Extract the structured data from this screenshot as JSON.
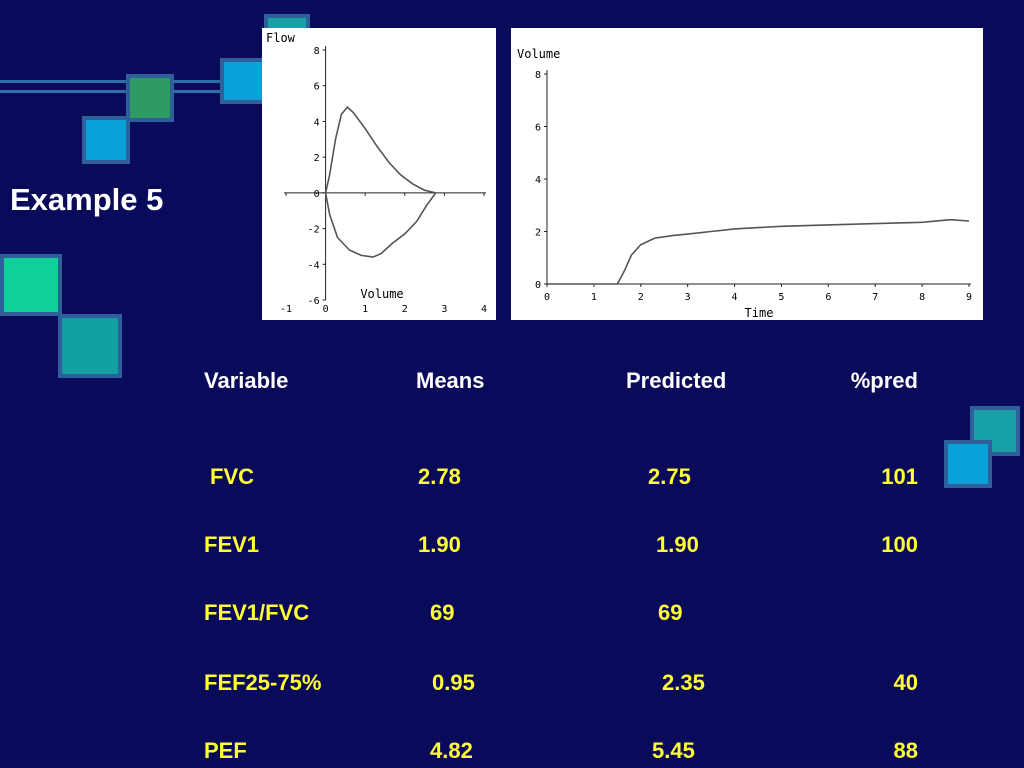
{
  "slide": {
    "title": "Example 5"
  },
  "colors": {
    "background": "#0a0a5a",
    "header_text": "#ffffff",
    "value_text": "#ffff33"
  },
  "chart_data": [
    {
      "type": "line",
      "xlabel": "Volume",
      "ylabel": "Flow",
      "xlim": [
        -1,
        4
      ],
      "ylim": [
        -6,
        8
      ],
      "x_ticks": [
        "-1",
        "0",
        "1",
        "2",
        "3",
        "4"
      ],
      "y_ticks": [
        "8",
        "6",
        "4",
        "2",
        "0",
        "-2",
        "-4",
        "-6"
      ],
      "series": [
        {
          "points": [
            [
              0.0,
              0.0
            ],
            [
              0.1,
              1.0
            ],
            [
              0.25,
              3.0
            ],
            [
              0.4,
              4.4
            ],
            [
              0.55,
              4.8
            ],
            [
              0.7,
              4.5
            ],
            [
              1.0,
              3.6
            ],
            [
              1.3,
              2.6
            ],
            [
              1.6,
              1.7
            ],
            [
              1.9,
              1.0
            ],
            [
              2.2,
              0.5
            ],
            [
              2.5,
              0.15
            ],
            [
              2.78,
              0.0
            ]
          ]
        },
        {
          "points": [
            [
              0.0,
              0.0
            ],
            [
              0.1,
              -1.2
            ],
            [
              0.3,
              -2.5
            ],
            [
              0.6,
              -3.2
            ],
            [
              0.9,
              -3.5
            ],
            [
              1.2,
              -3.6
            ],
            [
              1.4,
              -3.4
            ],
            [
              1.7,
              -2.8
            ],
            [
              2.0,
              -2.3
            ],
            [
              2.3,
              -1.6
            ],
            [
              2.55,
              -0.7
            ],
            [
              2.78,
              0.0
            ]
          ]
        }
      ]
    },
    {
      "type": "line",
      "xlabel": "Time",
      "ylabel": "Volume",
      "xlim": [
        0,
        9
      ],
      "ylim": [
        0,
        8
      ],
      "x_ticks": [
        "0",
        "1",
        "2",
        "3",
        "4",
        "5",
        "6",
        "7",
        "8",
        "9"
      ],
      "y_ticks": [
        "8",
        "6",
        "4",
        "2",
        "0"
      ],
      "series": [
        {
          "points": [
            [
              0.0,
              0.0
            ],
            [
              1.5,
              0.0
            ],
            [
              1.65,
              0.5
            ],
            [
              1.8,
              1.1
            ],
            [
              2.0,
              1.5
            ],
            [
              2.3,
              1.75
            ],
            [
              2.7,
              1.85
            ],
            [
              3.0,
              1.9
            ],
            [
              3.5,
              2.0
            ],
            [
              4.0,
              2.1
            ],
            [
              5.0,
              2.2
            ],
            [
              6.0,
              2.25
            ],
            [
              7.0,
              2.3
            ],
            [
              8.0,
              2.35
            ],
            [
              8.6,
              2.45
            ],
            [
              9.0,
              2.4
            ]
          ]
        }
      ]
    }
  ],
  "table": {
    "headers": [
      "Variable",
      "Means",
      "Predicted",
      "%pred"
    ],
    "rows": [
      [
        "FVC",
        "2.78",
        "2.75",
        "101"
      ],
      [
        "FEV1",
        "1.90",
        "1.90",
        "100"
      ],
      [
        "FEV1/FVC",
        "69",
        "69",
        ""
      ],
      [
        "FEF25-75%",
        "0.95",
        "2.35",
        "40"
      ],
      [
        "PEF",
        "4.82",
        "5.45",
        "88"
      ]
    ]
  }
}
